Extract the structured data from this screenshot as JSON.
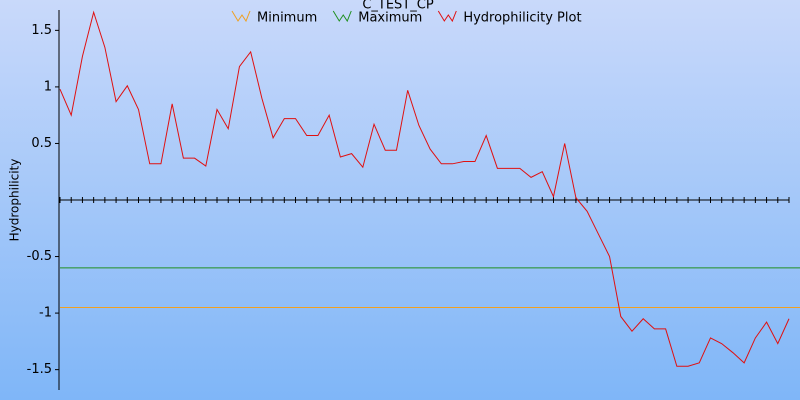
{
  "chart_data": {
    "type": "line",
    "title": "C_TEST_CP",
    "ylabel": "Hydrophilicity",
    "ylim": [
      -1.68,
      1.68
    ],
    "yticks": [
      1.5,
      1,
      0.5,
      -0.5,
      -1,
      -1.5
    ],
    "series": [
      {
        "name": "Minimum",
        "color": "#f0a020",
        "value": -0.95
      },
      {
        "name": "Maximum",
        "color": "#209020",
        "value": -0.6
      },
      {
        "name": "Hydrophilicity Plot",
        "color": "#e01010",
        "values": [
          0.98,
          0.75,
          1.27,
          1.66,
          1.35,
          0.87,
          1.01,
          0.8,
          0.32,
          0.32,
          0.85,
          0.37,
          0.37,
          0.3,
          0.8,
          0.63,
          1.18,
          1.31,
          0.9,
          0.55,
          0.72,
          0.72,
          0.57,
          0.57,
          0.75,
          0.38,
          0.41,
          0.29,
          0.67,
          0.44,
          0.44,
          0.97,
          0.66,
          0.45,
          0.32,
          0.32,
          0.34,
          0.34,
          0.57,
          0.28,
          0.28,
          0.28,
          0.2,
          0.25,
          0.03,
          0.5,
          0.02,
          -0.1,
          -0.3,
          -0.5,
          -1.03,
          -1.16,
          -1.05,
          -1.14,
          -1.14,
          -1.47,
          -1.47,
          -1.44,
          -1.22,
          -1.27,
          -1.35,
          -1.44,
          -1.22,
          -1.08,
          -1.27,
          -1.05
        ]
      }
    ]
  }
}
